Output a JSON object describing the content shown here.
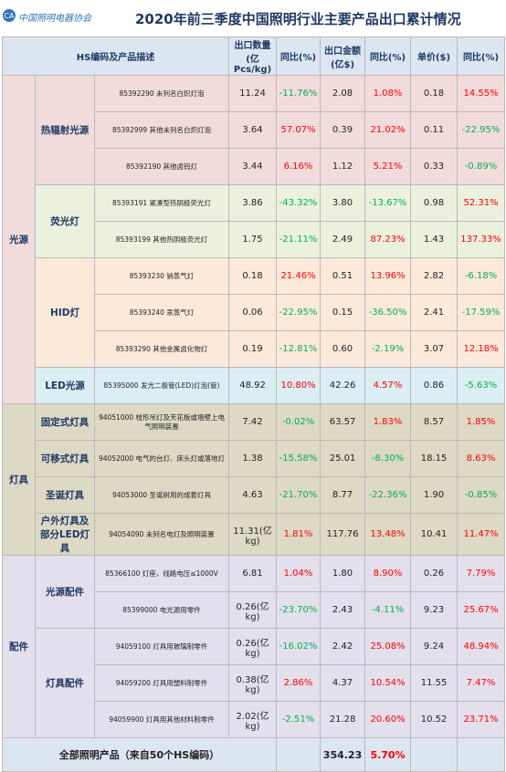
{
  "header": {
    "logo": "中国照明电器协会",
    "title": "2020年前三季度中国照明行业主要产品出口累计情况"
  },
  "table": {
    "columns": [
      "HS编码及产品描述",
      "出口数量\n(亿Pcs/kg)",
      "同比(%)",
      "出口金额\n(亿$)",
      "同比(%)",
      "单价($)",
      "同比(%)"
    ],
    "groups": [
      {
        "name": "光源",
        "color": "#f2dcdb",
        "subgroups": [
          {
            "name": "热辐射光源",
            "color": "#f2dcdb",
            "rows": [
              [
                "85392290 未列名白炽灯泡",
                "11.24",
                "-11.76%",
                "2.08",
                "1.08%",
                "0.18",
                "14.55%"
              ],
              [
                "85392999 其他未列名白炽灯泡",
                "3.64",
                "57.07%",
                "0.39",
                "21.02%",
                "0.11",
                "-22.95%"
              ],
              [
                "85392190 其他卤钨灯",
                "3.44",
                "6.16%",
                "1.12",
                "5.21%",
                "0.33",
                "-0.89%"
              ]
            ]
          },
          {
            "name": "荧光灯",
            "color": "#ebf1de",
            "rows": [
              [
                "85393191 紧凑型热阴极荧光灯",
                "3.86",
                "-43.32%",
                "3.80",
                "-13.67%",
                "0.98",
                "52.31%"
              ],
              [
                "85393199 其他热阴极荧光灯",
                "1.75",
                "-21.11%",
                "2.49",
                "87.23%",
                "1.43",
                "137.33%"
              ]
            ]
          },
          {
            "name": "HID灯",
            "color": "#fde9d9",
            "rows": [
              [
                "85393230 钠蒸气灯",
                "0.18",
                "21.46%",
                "0.51",
                "13.96%",
                "2.82",
                "-6.18%"
              ],
              [
                "85393240 汞蒸气灯",
                "0.06",
                "-22.95%",
                "0.15",
                "-36.50%",
                "2.41",
                "-17.59%"
              ],
              [
                "85393290 其他金属卤化物灯",
                "0.19",
                "-12.81%",
                "0.60",
                "-2.19%",
                "3.07",
                "12.18%"
              ]
            ]
          },
          {
            "name": "LED光源",
            "color": "#dbeef4",
            "rows": [
              [
                "85395000 发光二极管(LED)灯泡(管)",
                "48.92",
                "10.80%",
                "42.26",
                "4.57%",
                "0.86",
                "-5.63%"
              ]
            ]
          }
        ]
      },
      {
        "name": "灯具",
        "color": "#ddd9c4",
        "subgroups": [
          {
            "name": "固定式灯具",
            "color": "#ddd9c4",
            "rows": [
              [
                "94051000 枝形吊灯及天花板或墙壁上电气照明装置",
                "7.42",
                "-0.02%",
                "63.57",
                "1.83%",
                "8.57",
                "1.85%"
              ]
            ]
          },
          {
            "name": "可移式灯具",
            "color": "#ddd9c4",
            "rows": [
              [
                "94052000 电气的台灯、床头灯或落地灯",
                "1.38",
                "-15.58%",
                "25.01",
                "-8.30%",
                "18.15",
                "8.63%"
              ]
            ]
          },
          {
            "name": "圣诞灯具",
            "color": "#ddd9c4",
            "rows": [
              [
                "94053000 圣诞树用的成套灯具",
                "4.63",
                "-21.70%",
                "8.77",
                "-22.36%",
                "1.90",
                "-0.85%"
              ]
            ]
          },
          {
            "name": "户外灯具及部分LED灯具",
            "color": "#ddd9c4",
            "rows": [
              [
                "94054090 未列名电灯及照明装置",
                "11.31(亿kg)",
                "1.81%",
                "117.76",
                "13.48%",
                "10.41",
                "11.47%"
              ]
            ]
          }
        ]
      },
      {
        "name": "配件",
        "color": "#e4dfec",
        "subgroups": [
          {
            "name": "光源配件",
            "color": "#e4dfec",
            "rows": [
              [
                "85366100 灯座，线路电压≤1000V",
                "6.81",
                "1.04%",
                "1.80",
                "8.90%",
                "0.26",
                "7.79%"
              ],
              [
                "85399000 电光源用零件",
                "0.26(亿kg)",
                "-23.70%",
                "2.43",
                "-4.11%",
                "9.23",
                "25.67%"
              ]
            ]
          },
          {
            "name": "灯具配件",
            "color": "#e4dfec",
            "rows": [
              [
                "94059100 灯具用玻璃制零件",
                "0.26(亿kg)",
                "-16.02%",
                "2.42",
                "25.08%",
                "9.24",
                "48.94%"
              ],
              [
                "94059200 灯具用塑料制零件",
                "0.38(亿kg)",
                "2.86%",
                "4.37",
                "10.54%",
                "11.55",
                "7.47%"
              ],
              [
                "94059900 灯具用其他材料制零件",
                "2.02(亿kg)",
                "-2.51%",
                "21.28",
                "20.60%",
                "10.52",
                "23.71%"
              ]
            ]
          }
        ]
      }
    ],
    "total": {
      "label": "全部照明产品（来自50个HS编码）",
      "amount": "354.23",
      "change": "5.70%",
      "color": "#dce6f1"
    },
    "header_color": "#dce6f1"
  }
}
